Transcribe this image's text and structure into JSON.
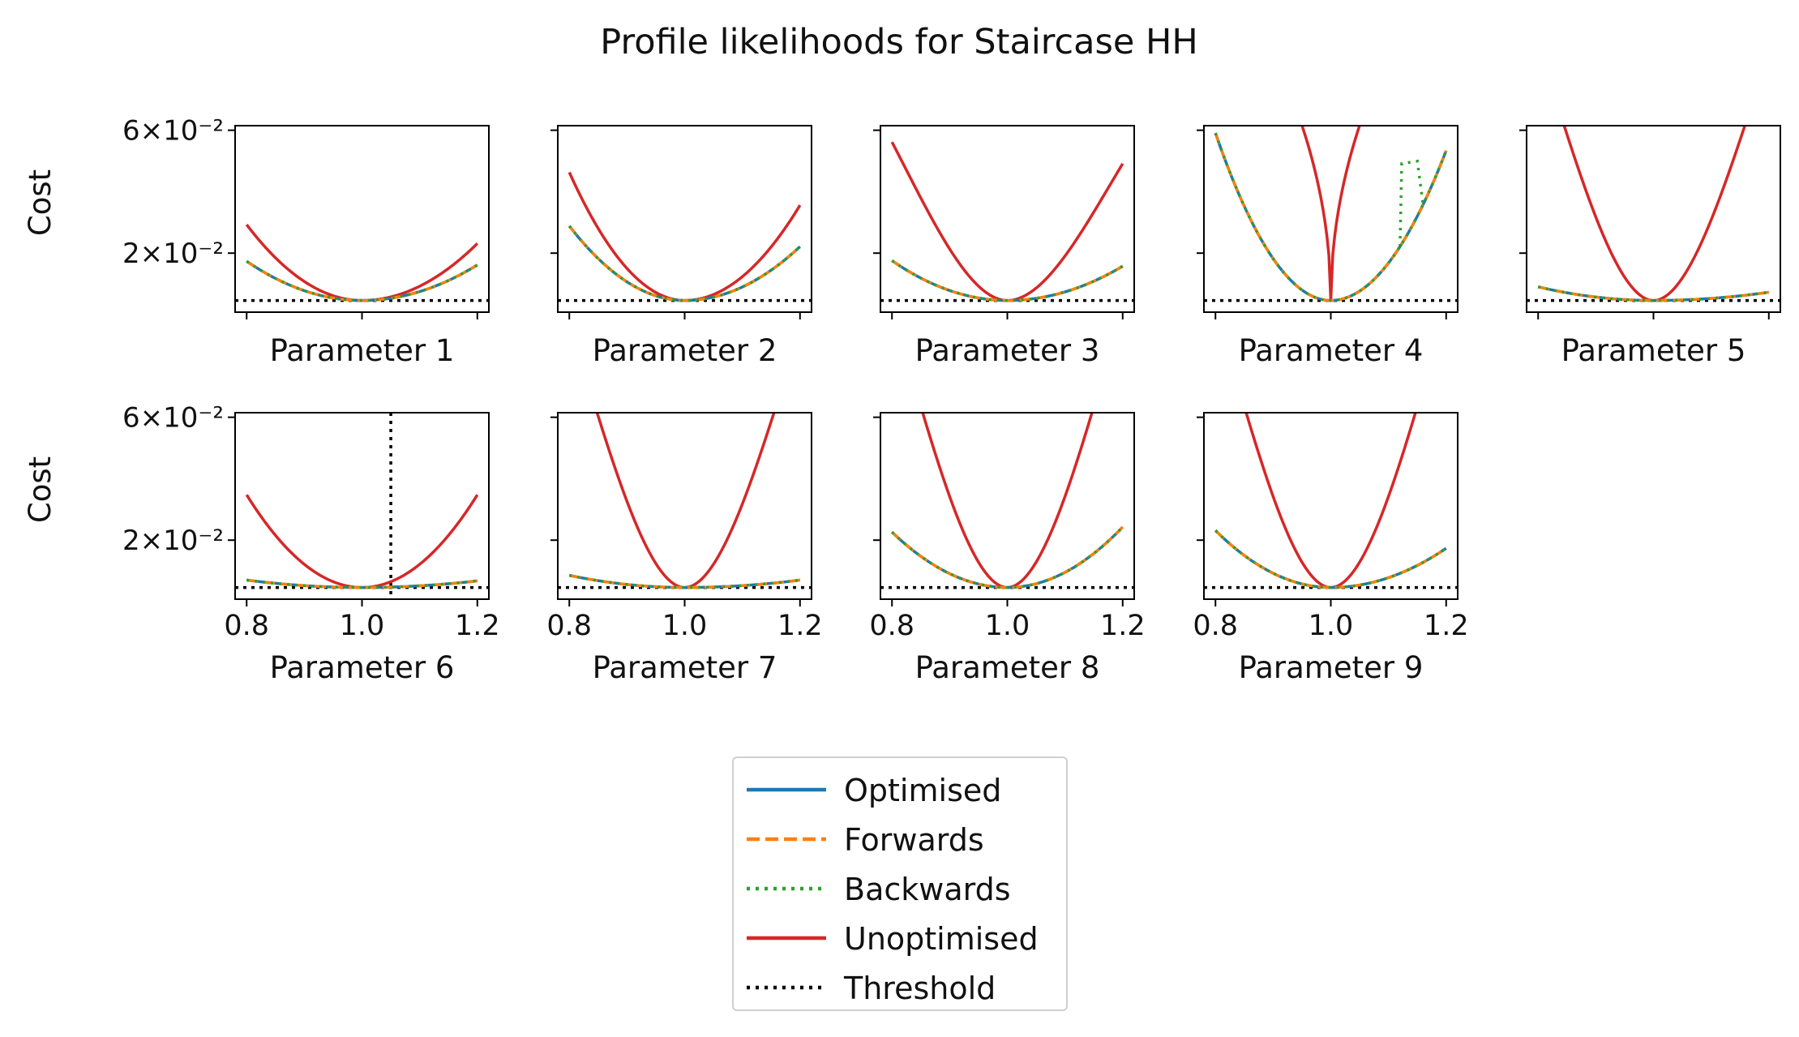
{
  "figure": {
    "title": "Profile likelihoods for Staircase HH",
    "ylabel": "Cost"
  },
  "colors": {
    "Optimised": "#1f77b4",
    "Forwards": "#ff7f0e",
    "Backwards": "#2ca02c",
    "Unoptimised": "#d62728",
    "Threshold": "#000000"
  },
  "legend": {
    "entries": [
      "Optimised",
      "Forwards",
      "Backwards",
      "Unoptimised",
      "Threshold"
    ]
  },
  "chart_data": {
    "type": "line",
    "layout": "grid 2x5, 9 panels, shared y axis (log scale)",
    "yscale": "log",
    "ylim": [
      0.0118,
      0.0625
    ],
    "y_ticks": [
      {
        "value": 0.06,
        "label": "6×10⁻²"
      },
      {
        "value": 0.02,
        "label": "2×10⁻²"
      }
    ],
    "xlim": [
      0.78,
      1.22
    ],
    "x_ticks": [
      0.8,
      1.0,
      1.2
    ],
    "x_tick_labels": [
      "0.8",
      "1.0",
      "1.2"
    ],
    "threshold_value": 0.0131,
    "legend_placement": "bottom-center",
    "panels": [
      {
        "xlabel": "Parameter 1",
        "optimised_end": [
          0.0186,
          0.018
        ],
        "unoptimised": {
          "type": "quad",
          "end": [
            0.0258,
            0.0218
          ]
        }
      },
      {
        "xlabel": "Parameter 2",
        "optimised_end": [
          0.0255,
          0.0212
        ],
        "unoptimised": {
          "type": "quad",
          "end": [
            0.0412,
            0.0307
          ]
        }
      },
      {
        "xlabel": "Parameter 3",
        "optimised_end": [
          0.0187,
          0.0178
        ],
        "unoptimised": {
          "type": "v",
          "end": [
            0.054,
            0.0445
          ]
        }
      },
      {
        "xlabel": "Parameter 4",
        "optimised_end": [
          0.0585,
          0.05
        ],
        "unoptimised": {
          "type": "sharp-v",
          "end": [
            0.3,
            0.3
          ]
        },
        "backwards_bump": {
          "x": [
            1.12,
            1.15
          ],
          "y": [
            0.0445,
            0.0455
          ]
        }
      },
      {
        "xlabel": "Parameter 5",
        "optimised_end": [
          0.0148,
          0.0141
        ],
        "unoptimised": {
          "type": "v",
          "end": [
            0.13,
            0.12
          ]
        }
      },
      {
        "xlabel": "Parameter 6",
        "optimised_end": [
          0.014,
          0.0139
        ],
        "unoptimised": {
          "type": "quad",
          "end": [
            0.03,
            0.03
          ]
        },
        "vertical_threshold_x": 1.05
      },
      {
        "xlabel": "Parameter 7",
        "optimised_end": [
          0.0146,
          0.014
        ],
        "unoptimised": {
          "type": "v",
          "end": [
            0.14,
            0.13
          ]
        }
      },
      {
        "xlabel": "Parameter 8",
        "optimised_end": [
          0.0215,
          0.0225
        ],
        "unoptimised": {
          "type": "v",
          "end": [
            0.16,
            0.16
          ]
        }
      },
      {
        "xlabel": "Parameter 9",
        "optimised_end": [
          0.0218,
          0.0186
        ],
        "unoptimised": {
          "type": "v",
          "end": [
            0.16,
            0.16
          ]
        }
      }
    ]
  }
}
